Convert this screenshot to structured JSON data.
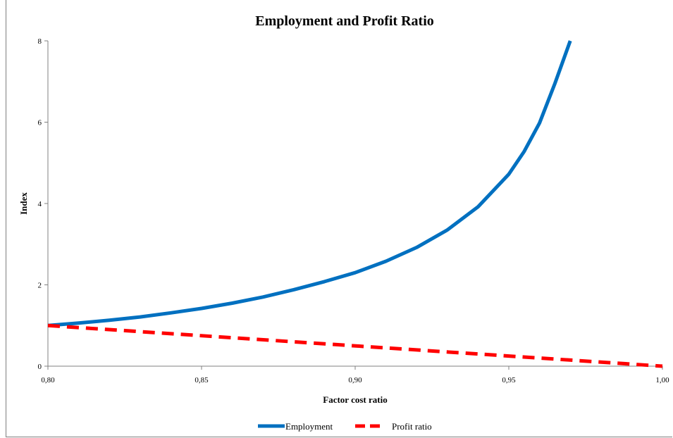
{
  "chart_data": {
    "type": "line",
    "title": "Employment and Profit Ratio",
    "xlabel": "Factor cost ratio",
    "ylabel": "Index",
    "xlim": [
      0.8,
      1.0
    ],
    "ylim": [
      0,
      8
    ],
    "x_ticks": [
      0.8,
      0.85,
      0.9,
      0.95,
      1.0
    ],
    "x_tick_labels": [
      "0,80",
      "0,85",
      "0,90",
      "0,95",
      "1,00"
    ],
    "y_ticks": [
      0,
      2,
      4,
      6,
      8
    ],
    "y_tick_labels": [
      "0",
      "2",
      "4",
      "6",
      "8"
    ],
    "grid": false,
    "legend_position": "bottom",
    "series": [
      {
        "name": "Employment",
        "color": "#0070c0",
        "style": "solid",
        "x": [
          0.8,
          0.81,
          0.82,
          0.83,
          0.84,
          0.85,
          0.86,
          0.87,
          0.88,
          0.89,
          0.9,
          0.91,
          0.92,
          0.93,
          0.94,
          0.95,
          0.955,
          0.96,
          0.965,
          0.97
        ],
        "y": [
          1.0,
          1.06,
          1.13,
          1.21,
          1.31,
          1.42,
          1.55,
          1.7,
          1.88,
          2.08,
          2.3,
          2.58,
          2.92,
          3.35,
          3.92,
          4.72,
          5.28,
          5.98,
          6.95,
          8.0
        ]
      },
      {
        "name": "Profit ratio",
        "color": "#ff0000",
        "style": "dashed",
        "x": [
          0.8,
          1.0
        ],
        "y": [
          1.0,
          0.0
        ]
      }
    ]
  }
}
